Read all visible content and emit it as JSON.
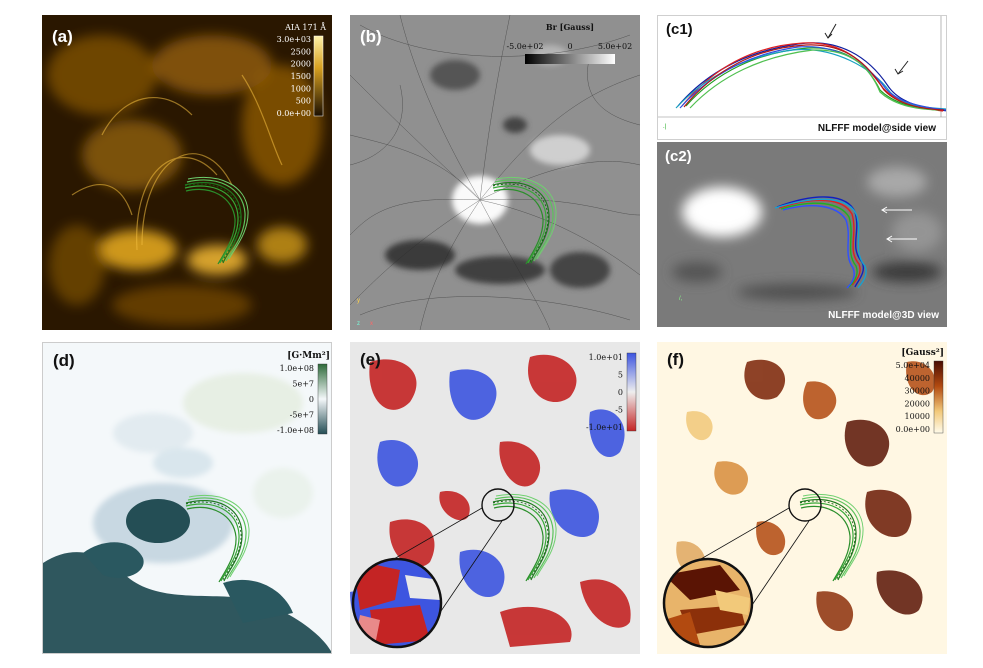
{
  "panels": {
    "a": {
      "label": "(a)",
      "colorbar_title": "AIA 171 Å",
      "ticks": [
        "3.0e+03",
        "2500",
        "2000",
        "1500",
        "1000",
        "500",
        "0.0e+00"
      ]
    },
    "b": {
      "label": "(b)",
      "colorbar_title": "Br [Gauss]",
      "ticks": [
        "-5.0e+02",
        "0",
        "5.0e+02"
      ],
      "axis_y": "y",
      "axis_z": "z",
      "axis_x": "x"
    },
    "c1": {
      "label": "(c1)",
      "caption": "NLFFF model@side view"
    },
    "c2": {
      "label": "(c2)",
      "caption": "NLFFF model@3D view"
    },
    "d": {
      "label": "(d)",
      "colorbar_title": "[G·Mm²]",
      "ticks": [
        "1.0e+08",
        "5e+7",
        "0",
        "-5e+7",
        "-1.0e+08"
      ]
    },
    "e": {
      "label": "(e)",
      "ticks": [
        "1.0e+01",
        "5",
        "0",
        "-5",
        "-1.0e+01"
      ]
    },
    "f": {
      "label": "(f)",
      "colorbar_title": "[Gauss²]",
      "ticks": [
        "5.0e+04",
        "40000",
        "30000",
        "20000",
        "10000",
        "0.0e+00"
      ]
    }
  },
  "colors": {
    "aia_dark": "#2a1700",
    "aia_bright": "#ffd24a",
    "rope_green": "#2f9a2f",
    "e_red": "#c42424",
    "e_blue": "#3d55e0",
    "f_dark": "#5a1404",
    "d_dark": "#244e55"
  }
}
